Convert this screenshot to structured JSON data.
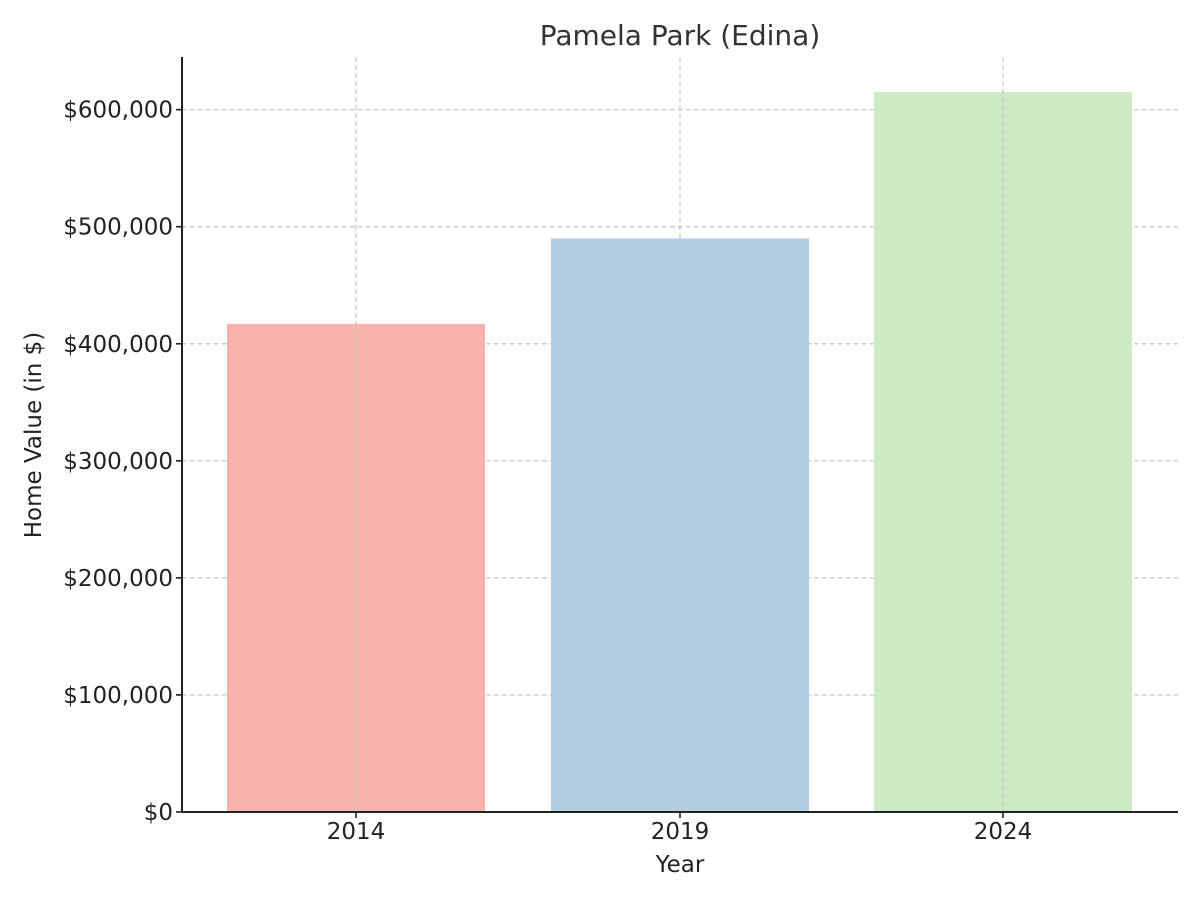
{
  "chart_data": {
    "type": "bar",
    "title": "Pamela Park (Edina)",
    "xlabel": "Year",
    "ylabel": "Home Value (in $)",
    "categories": [
      "2014",
      "2019",
      "2024"
    ],
    "values": [
      417000,
      490000,
      615000
    ],
    "colors": [
      "#fab4ae",
      "#b3cde3",
      "#ccebc5"
    ],
    "ylim": [
      0,
      645000
    ],
    "yticks": [
      0,
      100000,
      200000,
      300000,
      400000,
      500000,
      600000
    ],
    "ytick_labels": [
      "$0",
      "$100,000",
      "$200,000",
      "$300,000",
      "$400,000",
      "$500,000",
      "$600,000"
    ],
    "grid": true,
    "legend": "none"
  }
}
